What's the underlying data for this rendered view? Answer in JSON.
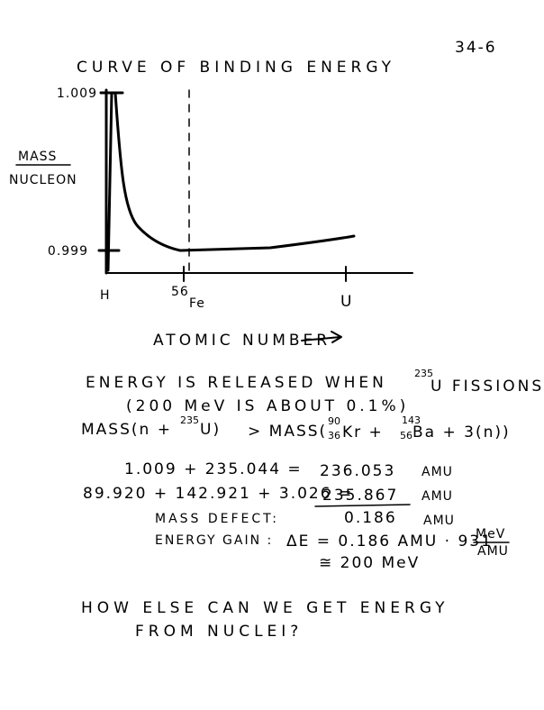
{
  "page_number": "34-6",
  "graph": {
    "title": "CURVE OF BINDING ENERGY",
    "y_label": {
      "numerator": "MASS",
      "denominator": "NUCLEON"
    },
    "y_ticks": [
      "1.009",
      "0.999"
    ],
    "x_ticks": {
      "left": "H",
      "iron_mass": "56",
      "iron": "Fe",
      "right": "U"
    },
    "x_label": "ATOMIC NUMBER"
  },
  "notes": {
    "released": [
      "ENERGY IS RELEASED WHEN",
      "235",
      "U FISSIONS"
    ],
    "aside": "(200 MeV IS ABOUT 0.1%)",
    "comparison": [
      "MASS(n +",
      "235",
      "U)",
      "> MASS(",
      "90",
      "36",
      "Kr +",
      "143",
      "56",
      "Ba + 3(n))"
    ],
    "sum_before": [
      "1.009 + 235.044 =",
      "236.053",
      "AMU"
    ],
    "sum_after": [
      "89.920 + 142.921 + 3.026 =",
      "235.867",
      "AMU"
    ],
    "defect": [
      "MASS DEFECT:",
      "0.186",
      "AMU"
    ],
    "gain": [
      "ENERGY GAIN :",
      "ΔE = 0.186 AMU · 931",
      "MeV",
      "AMU"
    ],
    "result": "≅ 200 MeV",
    "question": [
      "HOW ELSE CAN WE GET ENERGY",
      "FROM NUCLEI?"
    ]
  }
}
